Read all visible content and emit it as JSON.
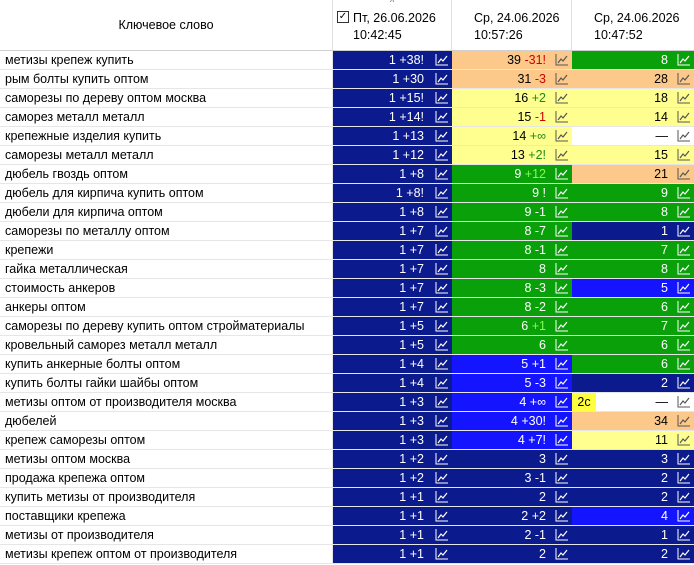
{
  "header": {
    "keyword_col": "Ключевое слово",
    "dates": [
      {
        "day": "Пт, 26.06.2026",
        "time": "10:42:45",
        "checked": true
      },
      {
        "day": "Ср, 24.06.2026",
        "time": "10:57:26"
      },
      {
        "day": "Ср, 24.06.2026",
        "time": "10:47:52"
      }
    ]
  },
  "colors": {
    "navy": "#0b1a8c",
    "blue": "#1414ff",
    "green": "#0aa00a",
    "yellow": "#ffff90",
    "orange": "#fdc98a",
    "white": "#ffffff"
  },
  "icons": [
    "chart-icon"
  ],
  "rows": [
    {
      "kw": "метизы крепеж купить",
      "c": [
        [
          "1",
          "+38!",
          "navy"
        ],
        [
          "39",
          "-31!",
          "orange"
        ],
        [
          "8",
          "",
          "green"
        ]
      ]
    },
    {
      "kw": "рым болты купить оптом",
      "c": [
        [
          "1",
          "+30",
          "navy"
        ],
        [
          "31",
          "-3",
          "orange"
        ],
        [
          "28",
          "",
          "orange"
        ]
      ]
    },
    {
      "kw": "саморезы по дереву оптом москва",
      "c": [
        [
          "1",
          "+15!",
          "navy"
        ],
        [
          "16",
          "+2",
          "yellow"
        ],
        [
          "18",
          "",
          "yellow"
        ]
      ]
    },
    {
      "kw": "саморез металл металл",
      "c": [
        [
          "1",
          "+14!",
          "navy"
        ],
        [
          "15",
          "-1",
          "yellow"
        ],
        [
          "14",
          "",
          "yellow"
        ]
      ]
    },
    {
      "kw": "крепежные изделия купить",
      "c": [
        [
          "1",
          "+13",
          "navy"
        ],
        [
          "14",
          "+∞",
          "yellow"
        ],
        [
          "—",
          "",
          "white"
        ]
      ]
    },
    {
      "kw": "саморезы металл металл",
      "c": [
        [
          "1",
          "+12",
          "navy"
        ],
        [
          "13",
          "+2!",
          "yellow"
        ],
        [
          "15",
          "",
          "yellow"
        ]
      ]
    },
    {
      "kw": "дюбель гвоздь оптом",
      "c": [
        [
          "1",
          "+8",
          "navy"
        ],
        [
          "9",
          "+12",
          "green"
        ],
        [
          "21",
          "",
          "orange"
        ]
      ]
    },
    {
      "kw": "дюбель для кирпича купить оптом",
      "c": [
        [
          "1",
          "+8!",
          "navy"
        ],
        [
          "9",
          "!",
          "green"
        ],
        [
          "9",
          "",
          "green"
        ]
      ]
    },
    {
      "kw": "дюбели для кирпича оптом",
      "c": [
        [
          "1",
          "+8",
          "navy"
        ],
        [
          "9",
          "-1",
          "green"
        ],
        [
          "8",
          "",
          "green"
        ]
      ]
    },
    {
      "kw": "саморезы по металлу оптом",
      "c": [
        [
          "1",
          "+7",
          "navy"
        ],
        [
          "8",
          "-7",
          "green"
        ],
        [
          "1",
          "",
          "navy"
        ]
      ]
    },
    {
      "kw": "крепежи",
      "c": [
        [
          "1",
          "+7",
          "navy"
        ],
        [
          "8",
          "-1",
          "green"
        ],
        [
          "7",
          "",
          "green"
        ]
      ]
    },
    {
      "kw": "гайка металлическая",
      "c": [
        [
          "1",
          "+7",
          "navy"
        ],
        [
          "8",
          "",
          "green"
        ],
        [
          "8",
          "",
          "green"
        ]
      ]
    },
    {
      "kw": "стоимость анкеров",
      "c": [
        [
          "1",
          "+7",
          "navy"
        ],
        [
          "8",
          "-3",
          "green"
        ],
        [
          "5",
          "",
          "blue"
        ]
      ]
    },
    {
      "kw": "анкеры оптом",
      "c": [
        [
          "1",
          "+7",
          "navy"
        ],
        [
          "8",
          "-2",
          "green"
        ],
        [
          "6",
          "",
          "green"
        ]
      ]
    },
    {
      "kw": "саморезы по дереву купить оптом стройматериалы",
      "c": [
        [
          "1",
          "+5",
          "navy"
        ],
        [
          "6",
          "+1",
          "green"
        ],
        [
          "7",
          "",
          "green"
        ]
      ]
    },
    {
      "kw": "кровельный саморез металл металл",
      "c": [
        [
          "1",
          "+5",
          "navy"
        ],
        [
          "6",
          "",
          "green"
        ],
        [
          "6",
          "",
          "green"
        ]
      ]
    },
    {
      "kw": "купить анкерные болты оптом",
      "c": [
        [
          "1",
          "+4",
          "navy"
        ],
        [
          "5",
          "+1",
          "blue"
        ],
        [
          "6",
          "",
          "green"
        ]
      ]
    },
    {
      "kw": "купить болты гайки шайбы оптом",
      "c": [
        [
          "1",
          "+4",
          "navy"
        ],
        [
          "5",
          "-3",
          "blue"
        ],
        [
          "2",
          "",
          "navy"
        ]
      ]
    },
    {
      "kw": "метизы оптом от производителя москва",
      "c": [
        [
          "1",
          "+3",
          "navy"
        ],
        [
          "4",
          "+∞",
          "blue"
        ],
        [
          "—",
          "",
          "white",
          "2с"
        ]
      ]
    },
    {
      "kw": "дюбелей",
      "c": [
        [
          "1",
          "+3",
          "navy"
        ],
        [
          "4",
          "+30!",
          "blue"
        ],
        [
          "34",
          "",
          "orange"
        ]
      ]
    },
    {
      "kw": "крепеж саморезы оптом",
      "c": [
        [
          "1",
          "+3",
          "navy"
        ],
        [
          "4",
          "+7!",
          "blue"
        ],
        [
          "11",
          "",
          "yellow"
        ]
      ]
    },
    {
      "kw": "метизы оптом москва",
      "c": [
        [
          "1",
          "+2",
          "navy"
        ],
        [
          "3",
          "",
          "navy"
        ],
        [
          "3",
          "",
          "navy"
        ]
      ]
    },
    {
      "kw": "продажа крепежа оптом",
      "c": [
        [
          "1",
          "+2",
          "navy"
        ],
        [
          "3",
          "-1",
          "navy"
        ],
        [
          "2",
          "",
          "navy"
        ]
      ]
    },
    {
      "kw": "купить метизы от производителя",
      "c": [
        [
          "1",
          "+1",
          "navy"
        ],
        [
          "2",
          "",
          "navy"
        ],
        [
          "2",
          "",
          "navy"
        ]
      ]
    },
    {
      "kw": "поставщики крепежа",
      "c": [
        [
          "1",
          "+1",
          "navy"
        ],
        [
          "2",
          "+2",
          "navy"
        ],
        [
          "4",
          "",
          "blue"
        ]
      ]
    },
    {
      "kw": "метизы от производителя",
      "c": [
        [
          "1",
          "+1",
          "navy"
        ],
        [
          "2",
          "-1",
          "navy"
        ],
        [
          "1",
          "",
          "navy"
        ]
      ]
    },
    {
      "kw": "метизы крепеж оптом от производителя",
      "c": [
        [
          "1",
          "+1",
          "navy"
        ],
        [
          "2",
          "",
          "navy"
        ],
        [
          "2",
          "",
          "navy"
        ]
      ]
    }
  ]
}
